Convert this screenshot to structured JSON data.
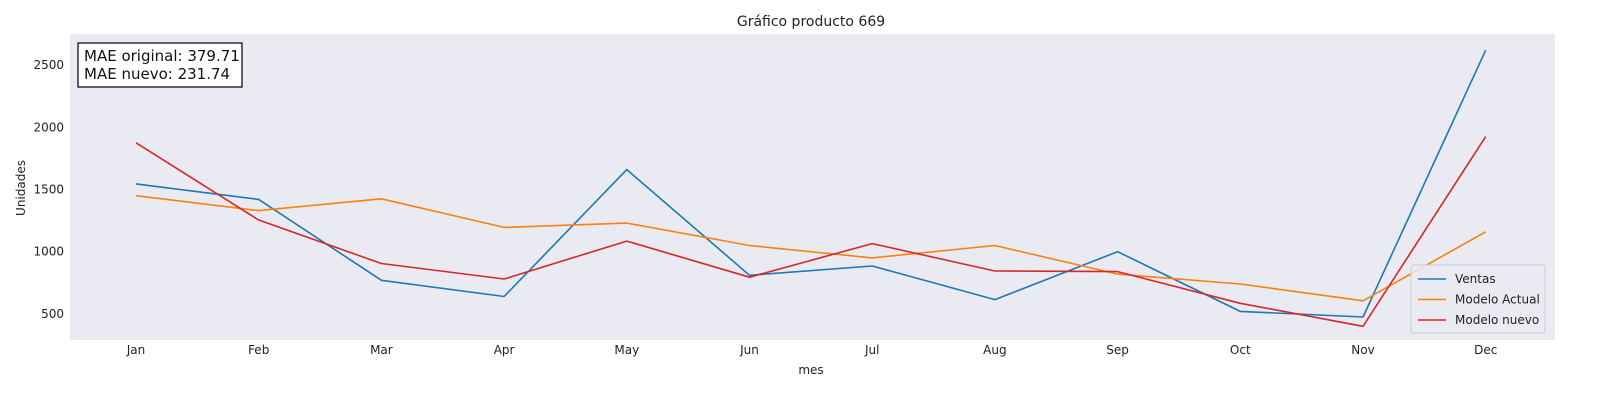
{
  "chart_data": {
    "type": "line",
    "title": "Gráfico producto 669",
    "xlabel": "mes",
    "ylabel": "Unidades",
    "categories": [
      "Jan",
      "Feb",
      "Mar",
      "Apr",
      "May",
      "Jun",
      "Jul",
      "Aug",
      "Sep",
      "Oct",
      "Nov",
      "Dec"
    ],
    "yticks": [
      500,
      1000,
      1500,
      2000,
      2500
    ],
    "ylim": [
      290,
      2750
    ],
    "grid": false,
    "legend_position": "lower-right",
    "annotation": [
      "MAE original: 379.71",
      "MAE nuevo: 231.74"
    ],
    "series": [
      {
        "name": "Ventas",
        "color": "#1f77b4",
        "values": [
          1545,
          1420,
          770,
          640,
          1660,
          810,
          885,
          615,
          1000,
          520,
          475,
          2620
        ]
      },
      {
        "name": "Modelo Actual",
        "color": "#ff7f0e",
        "values": [
          1450,
          1330,
          1425,
          1195,
          1230,
          1050,
          950,
          1050,
          820,
          740,
          605,
          1160
        ]
      },
      {
        "name": "Modelo nuevo",
        "color": "#d62728",
        "values": [
          1875,
          1255,
          905,
          780,
          1085,
          795,
          1065,
          845,
          840,
          585,
          400,
          1925
        ]
      }
    ]
  },
  "style": {
    "plot_bg": "#eaeaf2",
    "axis_text": "#222222"
  }
}
